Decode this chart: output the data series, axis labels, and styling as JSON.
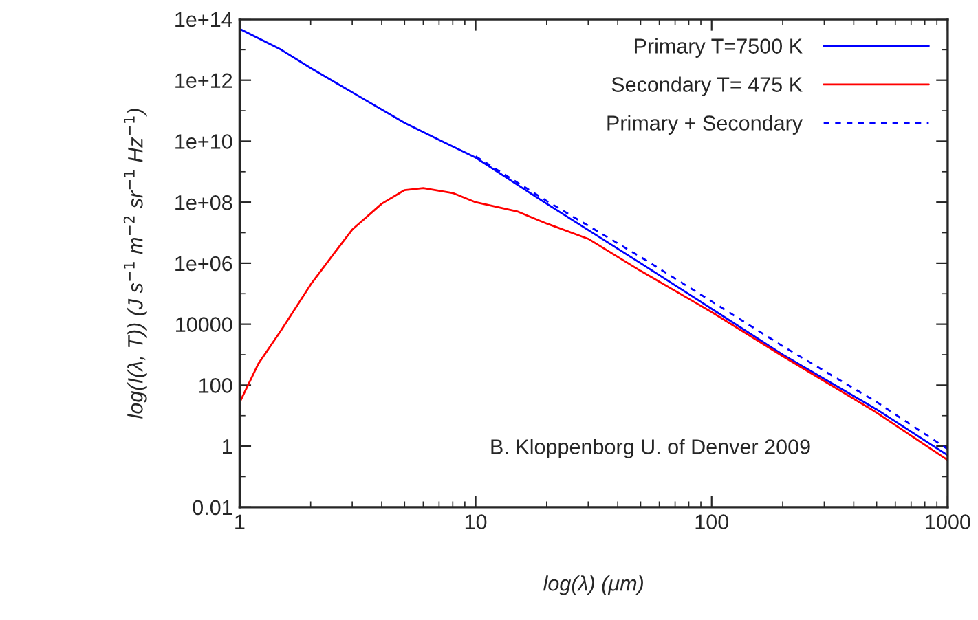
{
  "chart_data": {
    "type": "line",
    "xlabel": "log(λ) (μm)",
    "ylabel": "log(I(λ, T)) (J s$^{−1}$ m$^{−2}$ sr$^{−1}$ Hz$^{−1}$)",
    "log": "xy",
    "xlim": [
      1,
      1000
    ],
    "xticks": [
      1,
      10,
      100,
      1000
    ],
    "ylim": [
      0.01,
      100000000000000.0
    ],
    "yticks": [
      0.01,
      1,
      100,
      10000,
      {
        "value": 1000000.0,
        "label": "1e+06"
      },
      {
        "value": 100000000.0,
        "label": "1e+08"
      },
      {
        "value": 10000000000.0,
        "label": "1e+10"
      },
      {
        "value": 1000000000000.0,
        "label": "1e+12"
      },
      {
        "value": 100000000000000.0,
        "label": "1e+14"
      }
    ],
    "grid": false,
    "legend": "top right",
    "annotations": [
      "B. Kloppenborg U. of Denver 2009"
    ],
    "series": [
      {
        "name": "Primary T=7500 K",
        "color": "#0000ff",
        "line_style": "solid",
        "x": [
          1,
          1.5,
          2,
          3,
          5,
          7,
          10,
          20,
          50,
          100,
          200,
          500,
          1000
        ],
        "values": [
          48000000000000.0,
          10000000000000.0,
          2500000000000.0,
          400000000000.0,
          40000000000.0,
          11000000000.0,
          2900000000.0,
          89000000.0,
          1000000.0,
          32000.0,
          1000,
          16,
          0.5
        ]
      },
      {
        "name": "Secondary T= 475 K",
        "color": "#ff0000",
        "line_style": "solid",
        "x": [
          1,
          1.2,
          1.5,
          2,
          2.5,
          3,
          4,
          5,
          6,
          8,
          10,
          15,
          20,
          30,
          50,
          100,
          200,
          500,
          1000
        ],
        "values": [
          27,
          500,
          6300,
          200000.0,
          2000000.0,
          12600000.0,
          89000000.0,
          250000000.0,
          290000000.0,
          200000000.0,
          100000000.0,
          50000000.0,
          20000000.0,
          6300000.0,
          560000.0,
          25000.0,
          890,
          12.6,
          0.35
        ]
      },
      {
        "name": "Primary + Secondary",
        "color": "#0000ff",
        "line_style": "dashed",
        "x": [
          10,
          20,
          50,
          100,
          200,
          500,
          1000
        ],
        "values": [
          3200000000.0,
          110000000.0,
          1600000.0,
          56000.0,
          1900,
          28,
          0.8
        ]
      }
    ]
  }
}
